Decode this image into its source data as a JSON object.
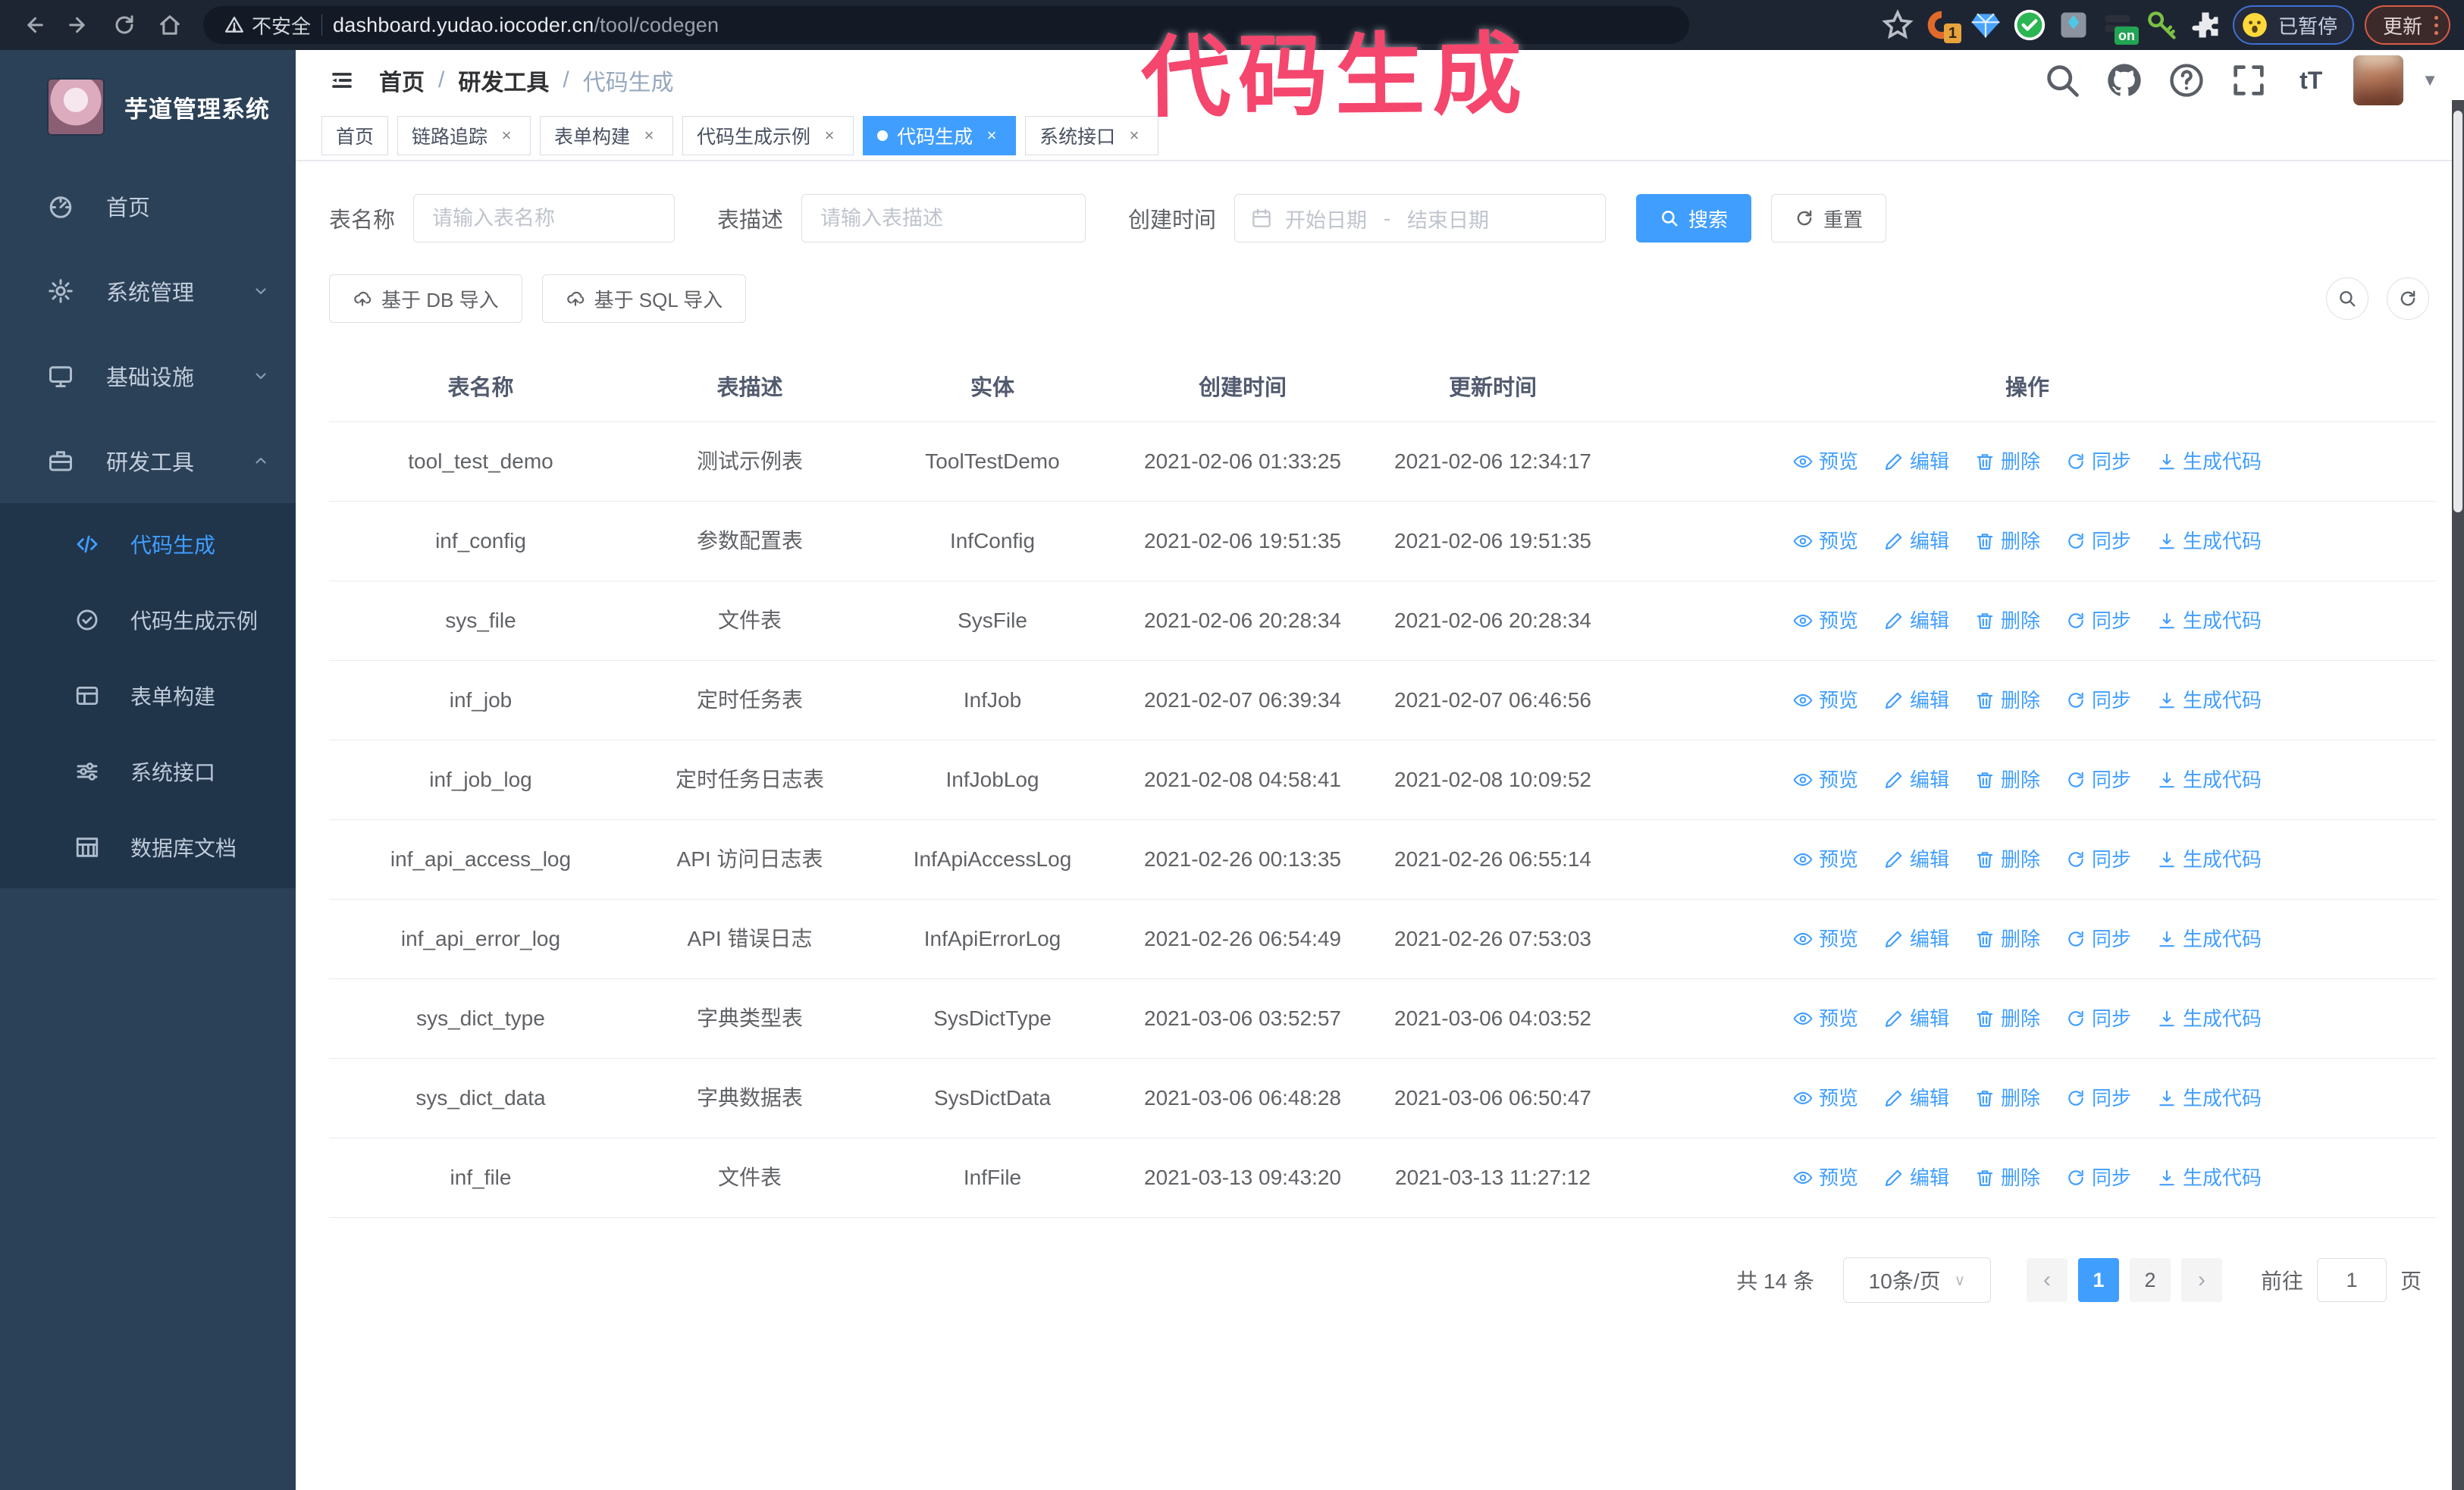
{
  "annotation": {
    "text": "代码生成"
  },
  "browser": {
    "security_warning": "不安全",
    "url_host": "dashboard.yudao.iocoder.cn",
    "url_path": "/tool/codegen",
    "extension_badge": "1",
    "extension_on_badge": "on",
    "paused_badge": "已暂停",
    "update_button": "更新"
  },
  "sidebar": {
    "title": "芋道管理系统",
    "items": [
      {
        "label": "首页",
        "icon": "dashboard",
        "chevron": ""
      },
      {
        "label": "系统管理",
        "icon": "gear",
        "chevron": "down"
      },
      {
        "label": "基础设施",
        "icon": "monitor",
        "chevron": "down"
      },
      {
        "label": "研发工具",
        "icon": "briefcase",
        "chevron": "up"
      }
    ],
    "submenu": [
      {
        "label": "代码生成",
        "icon": "code",
        "active": true
      },
      {
        "label": "代码生成示例",
        "icon": "check-circle",
        "active": false
      },
      {
        "label": "表单构建",
        "icon": "form",
        "active": false
      },
      {
        "label": "系统接口",
        "icon": "sliders",
        "active": false
      },
      {
        "label": "数据库文档",
        "icon": "columns",
        "active": false
      }
    ]
  },
  "header": {
    "breadcrumb": [
      "首页",
      "研发工具",
      "代码生成"
    ]
  },
  "tabs": [
    {
      "label": "首页",
      "closable": false,
      "active": false
    },
    {
      "label": "链路追踪",
      "closable": true,
      "active": false
    },
    {
      "label": "表单构建",
      "closable": true,
      "active": false
    },
    {
      "label": "代码生成示例",
      "closable": true,
      "active": false
    },
    {
      "label": "代码生成",
      "closable": true,
      "active": true
    },
    {
      "label": "系统接口",
      "closable": true,
      "active": false
    }
  ],
  "filters": {
    "table_name_label": "表名称",
    "table_name_placeholder": "请输入表名称",
    "table_desc_label": "表描述",
    "table_desc_placeholder": "请输入表描述",
    "create_time_label": "创建时间",
    "start_placeholder": "开始日期",
    "range_separator": "-",
    "end_placeholder": "结束日期",
    "search_label": "搜索",
    "reset_label": "重置"
  },
  "toolbar": {
    "import_db_label": "基于 DB 导入",
    "import_sql_label": "基于 SQL 导入"
  },
  "table": {
    "columns": [
      "表名称",
      "表描述",
      "实体",
      "创建时间",
      "更新时间",
      "操作"
    ],
    "actions": [
      "预览",
      "编辑",
      "删除",
      "同步",
      "生成代码"
    ],
    "rows": [
      {
        "name": "tool_test_demo",
        "desc": "测试示例表",
        "entity": "ToolTestDemo",
        "created": "2021-02-06 01:33:25",
        "updated": "2021-02-06 12:34:17"
      },
      {
        "name": "inf_config",
        "desc": "参数配置表",
        "entity": "InfConfig",
        "created": "2021-02-06 19:51:35",
        "updated": "2021-02-06 19:51:35"
      },
      {
        "name": "sys_file",
        "desc": "文件表",
        "entity": "SysFile",
        "created": "2021-02-06 20:28:34",
        "updated": "2021-02-06 20:28:34"
      },
      {
        "name": "inf_job",
        "desc": "定时任务表",
        "entity": "InfJob",
        "created": "2021-02-07 06:39:34",
        "updated": "2021-02-07 06:46:56"
      },
      {
        "name": "inf_job_log",
        "desc": "定时任务日志表",
        "entity": "InfJobLog",
        "created": "2021-02-08 04:58:41",
        "updated": "2021-02-08 10:09:52"
      },
      {
        "name": "inf_api_access_log",
        "desc": "API 访问日志表",
        "entity": "InfApiAccessLog",
        "created": "2021-02-26 00:13:35",
        "updated": "2021-02-26 06:55:14"
      },
      {
        "name": "inf_api_error_log",
        "desc": "API 错误日志",
        "entity": "InfApiErrorLog",
        "created": "2021-02-26 06:54:49",
        "updated": "2021-02-26 07:53:03"
      },
      {
        "name": "sys_dict_type",
        "desc": "字典类型表",
        "entity": "SysDictType",
        "created": "2021-03-06 03:52:57",
        "updated": "2021-03-06 04:03:52"
      },
      {
        "name": "sys_dict_data",
        "desc": "字典数据表",
        "entity": "SysDictData",
        "created": "2021-03-06 06:48:28",
        "updated": "2021-03-06 06:50:47"
      },
      {
        "name": "inf_file",
        "desc": "文件表",
        "entity": "InfFile",
        "created": "2021-03-13 09:43:20",
        "updated": "2021-03-13 11:27:12"
      }
    ]
  },
  "pagination": {
    "total": "共 14 条",
    "page_size": "10条/页",
    "pages": [
      "1",
      "2"
    ],
    "active_page": "1",
    "goto_label": "前往",
    "goto_value": "1",
    "page_unit": "页"
  },
  "colors": {
    "accent": "#409eff",
    "annotation_pink": "#f5466d",
    "sidebar_bg": "#2b4157",
    "submenu_bg": "#20344a"
  }
}
